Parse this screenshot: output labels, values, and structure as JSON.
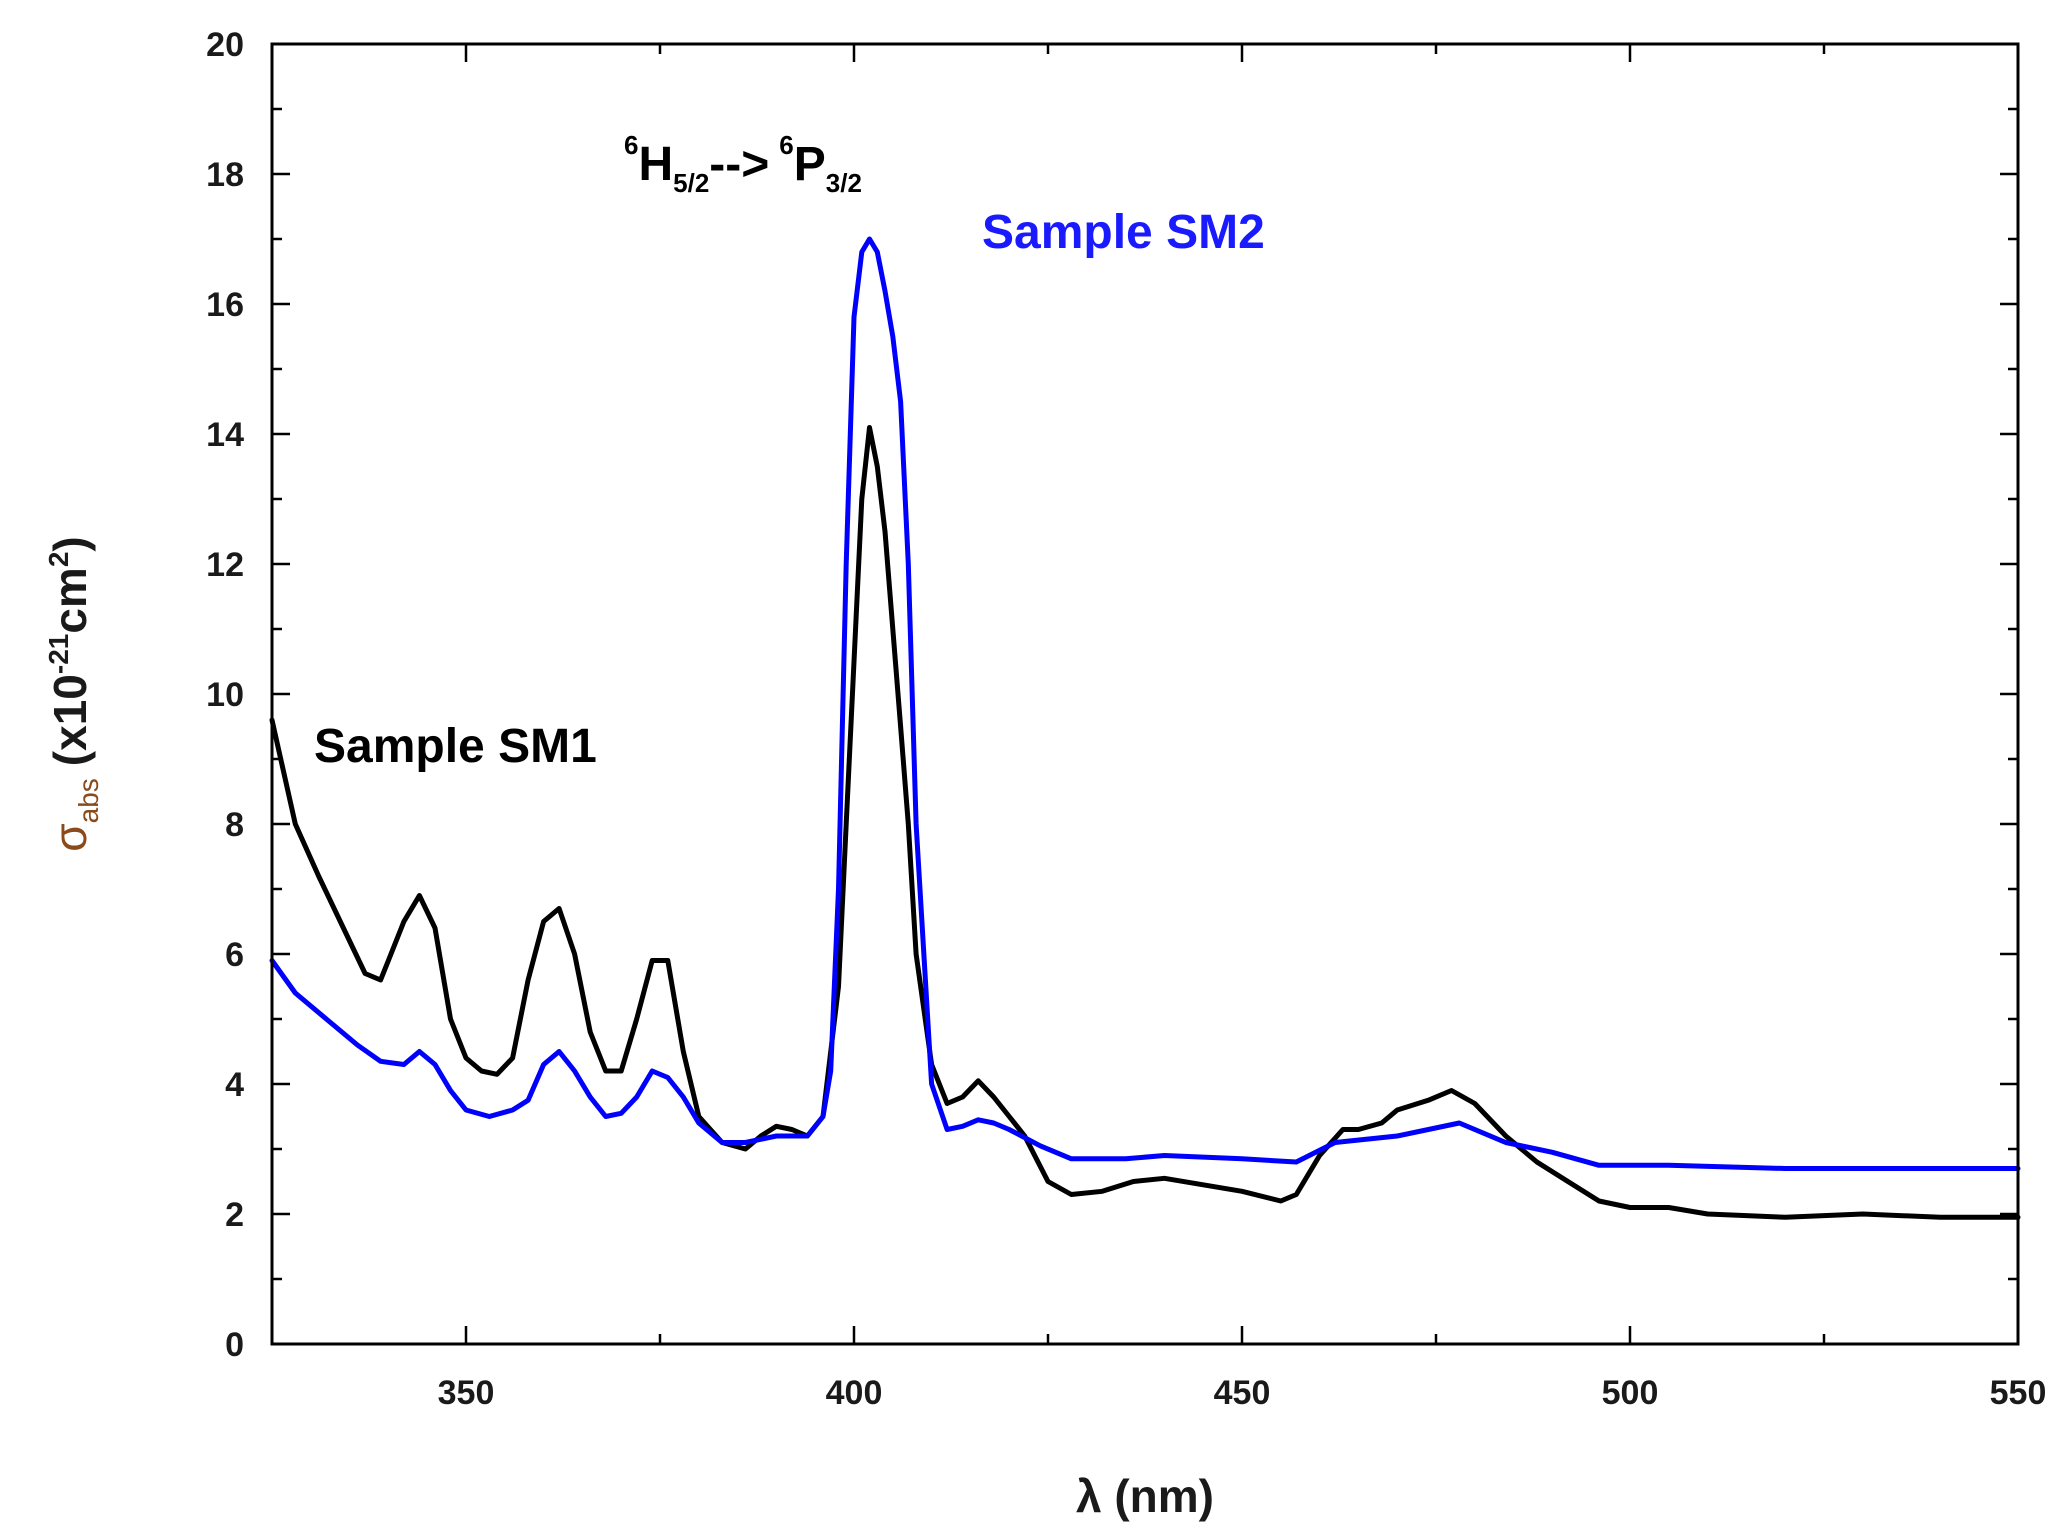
{
  "chart_data": {
    "type": "line",
    "title": "",
    "xlabel": "λ (nm)",
    "ylabel": {
      "symbol": "σ",
      "subscript": "abs",
      "unit_prefix": "(x10",
      "exponent": "-21",
      "unit_mid": "cm",
      "unit_exp": "2",
      "unit_close": ")"
    },
    "xlim": [
      325,
      550
    ],
    "ylim": [
      0,
      20
    ],
    "xticks": [
      350,
      400,
      450,
      500,
      550
    ],
    "yticks": [
      0,
      2,
      4,
      6,
      8,
      10,
      12,
      14,
      16,
      18,
      20
    ],
    "grid": false,
    "annotations": {
      "transition": {
        "left_sup": "6",
        "left_main": "H",
        "left_sub": "5/2",
        "arrow": "-->",
        "right_sup": "6",
        "right_main": "P",
        "right_sub": "3/2"
      },
      "sm1_label": "Sample SM1",
      "sm2_label": "Sample SM2"
    },
    "series": [
      {
        "name": "Sample SM1",
        "color": "#000000",
        "x": [
          325,
          328,
          331,
          335,
          337,
          339,
          340,
          342,
          344,
          346,
          348,
          350,
          352,
          354,
          356,
          358,
          360,
          362,
          364,
          366,
          368,
          370,
          372,
          374,
          376,
          378,
          380,
          383,
          386,
          388,
          390,
          392,
          394,
          396,
          398,
          399,
          400,
          401,
          402,
          403,
          404,
          405,
          406,
          407,
          408,
          410,
          412,
          414,
          416,
          418,
          420,
          422,
          425,
          428,
          432,
          436,
          440,
          445,
          450,
          455,
          457,
          460,
          463,
          465,
          468,
          470,
          474,
          477,
          480,
          484,
          488,
          492,
          496,
          500,
          505,
          510,
          520,
          530,
          540,
          550
        ],
        "values": [
          9.6,
          8.0,
          7.2,
          6.2,
          5.7,
          5.6,
          5.9,
          6.5,
          6.9,
          6.4,
          5.0,
          4.4,
          4.2,
          4.15,
          4.4,
          5.6,
          6.5,
          6.7,
          6.0,
          4.8,
          4.2,
          4.2,
          5.0,
          5.9,
          5.9,
          4.5,
          3.5,
          3.1,
          3.0,
          3.2,
          3.35,
          3.3,
          3.2,
          3.5,
          5.5,
          8.0,
          10.5,
          13.0,
          14.1,
          13.5,
          12.5,
          11.0,
          9.5,
          8.0,
          6.0,
          4.3,
          3.7,
          3.8,
          4.05,
          3.8,
          3.5,
          3.2,
          2.5,
          2.3,
          2.35,
          2.5,
          2.55,
          2.45,
          2.35,
          2.2,
          2.3,
          2.9,
          3.3,
          3.3,
          3.4,
          3.6,
          3.75,
          3.9,
          3.7,
          3.2,
          2.8,
          2.5,
          2.2,
          2.1,
          2.1,
          2.0,
          1.95,
          2.0,
          1.95,
          1.95
        ]
      },
      {
        "name": "Sample SM2",
        "color": "#0000ff",
        "x": [
          325,
          328,
          332,
          336,
          339,
          342,
          344,
          346,
          348,
          350,
          353,
          356,
          358,
          360,
          362,
          364,
          366,
          368,
          370,
          372,
          374,
          376,
          378,
          380,
          383,
          386,
          390,
          394,
          396,
          397,
          398,
          399,
          400,
          401,
          402,
          403,
          404,
          405,
          406,
          407,
          408,
          410,
          412,
          414,
          416,
          418,
          420,
          424,
          428,
          435,
          440,
          450,
          457,
          462,
          470,
          478,
          484,
          490,
          496,
          505,
          520,
          550
        ],
        "values": [
          5.9,
          5.4,
          5.0,
          4.6,
          4.35,
          4.3,
          4.5,
          4.3,
          3.9,
          3.6,
          3.5,
          3.6,
          3.75,
          4.3,
          4.5,
          4.2,
          3.8,
          3.5,
          3.55,
          3.8,
          4.2,
          4.1,
          3.8,
          3.4,
          3.1,
          3.1,
          3.2,
          3.2,
          3.5,
          4.2,
          7.0,
          12.0,
          15.8,
          16.8,
          17.0,
          16.8,
          16.2,
          15.5,
          14.5,
          12.0,
          8.0,
          4.0,
          3.3,
          3.35,
          3.45,
          3.4,
          3.3,
          3.05,
          2.85,
          2.85,
          2.9,
          2.85,
          2.8,
          3.1,
          3.2,
          3.4,
          3.1,
          2.95,
          2.75,
          2.75,
          2.7,
          2.7
        ]
      }
    ]
  }
}
